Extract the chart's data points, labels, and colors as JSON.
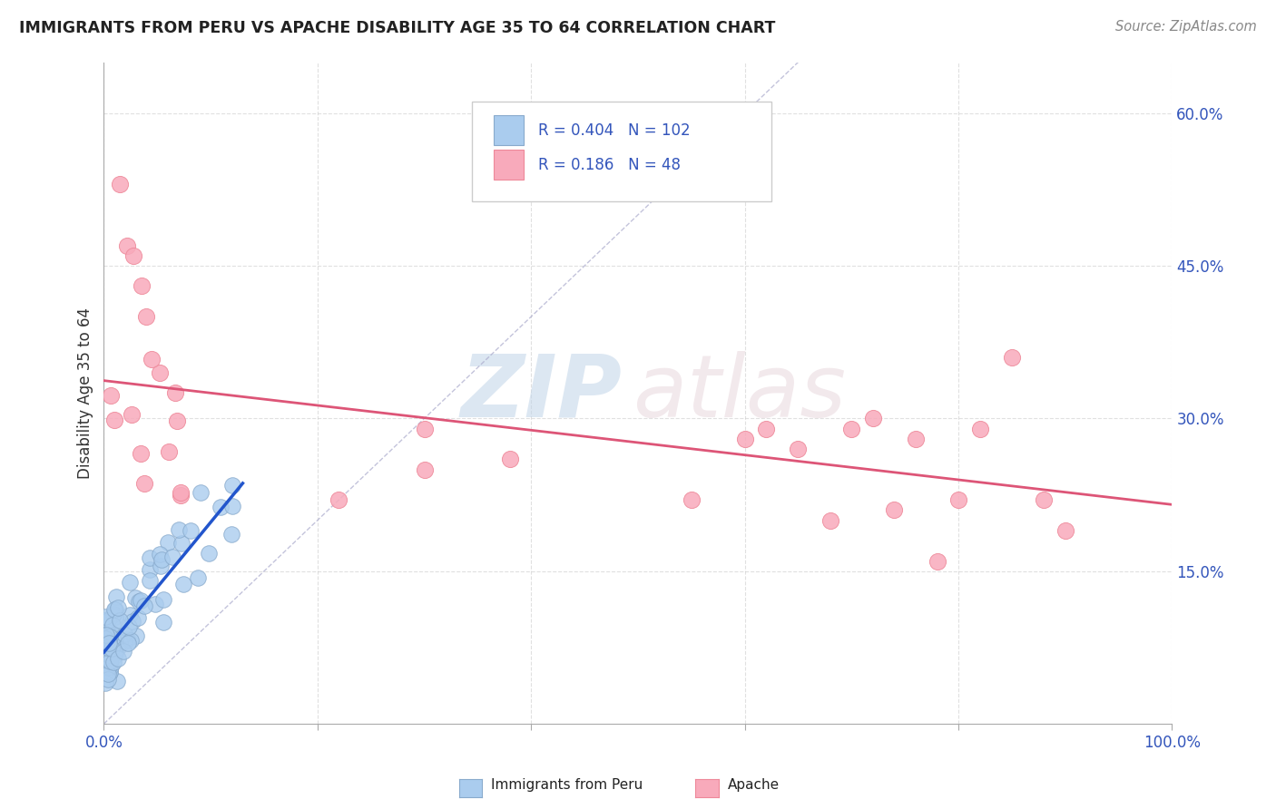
{
  "title": "IMMIGRANTS FROM PERU VS APACHE DISABILITY AGE 35 TO 64 CORRELATION CHART",
  "source_text": "Source: ZipAtlas.com",
  "ylabel": "Disability Age 35 to 64",
  "xlim": [
    0,
    1.0
  ],
  "ylim": [
    0.0,
    0.65
  ],
  "yticks": [
    0.15,
    0.3,
    0.45,
    0.6
  ],
  "ytick_labels": [
    "15.0%",
    "30.0%",
    "45.0%",
    "60.0%"
  ],
  "xtick_vals": [
    0.0,
    0.2,
    0.4,
    0.6,
    0.8,
    1.0
  ],
  "xtick_labels": [
    "0.0%",
    "",
    "",
    "",
    "",
    "100.0%"
  ],
  "grid_color": "#cccccc",
  "background_color": "#ffffff",
  "watermark_zip": "ZIP",
  "watermark_atlas": "atlas",
  "legend_R1": "0.404",
  "legend_N1": "102",
  "legend_R2": "0.186",
  "legend_N2": "48",
  "series1_color": "#aaccee",
  "series2_color": "#f8aabb",
  "series1_edge": "#88aacc",
  "series2_edge": "#ee8899",
  "reg1_color": "#2255cc",
  "reg2_color": "#dd5577",
  "diag_color": "#aaaacc",
  "title_color": "#222222",
  "source_color": "#888888",
  "tick_label_color": "#3355bb",
  "ylabel_color": "#333333",
  "legend_text_color": "#3355bb"
}
